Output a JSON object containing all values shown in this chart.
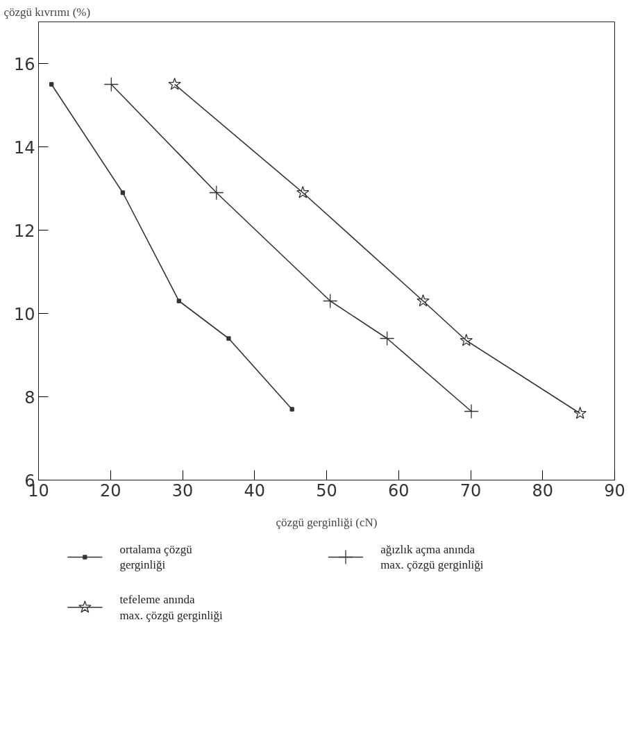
{
  "chart_data": {
    "type": "line",
    "ylabel": "çözgü kıvrımı (%)",
    "xlabel": "çözgü gerginliği (cN)",
    "xlim": [
      10,
      90
    ],
    "xticks": [
      10,
      20,
      30,
      40,
      50,
      60,
      70,
      80,
      90
    ],
    "ylim": [
      6,
      17
    ],
    "yticks": [
      6,
      8,
      10,
      12,
      14,
      16
    ],
    "grid": false,
    "legend": "bottom",
    "line_style": "solid",
    "series": [
      {
        "name": "ortalama çözgü\ngerginliği",
        "color": "#333333",
        "marker": "square",
        "x": [
          11.8,
          21.7,
          29.5,
          36.4,
          45.2
        ],
        "values": [
          15.5,
          12.9,
          10.3,
          9.4,
          7.7
        ]
      },
      {
        "name": "tefeleme anında\nmax. çözgü gerginliği",
        "color": "#333333",
        "marker": "star",
        "x": [
          28.9,
          46.7,
          63.4,
          69.4,
          85.2
        ],
        "values": [
          15.5,
          12.9,
          10.3,
          9.35,
          7.6
        ]
      },
      {
        "name": "ağızlık açma anında\nmax. çözgü gerginliği",
        "color": "#333333",
        "marker": "cross",
        "x": [
          20.1,
          34.7,
          50.5,
          58.4,
          70.1
        ],
        "values": [
          15.5,
          12.9,
          10.3,
          9.4,
          7.65
        ]
      }
    ]
  }
}
